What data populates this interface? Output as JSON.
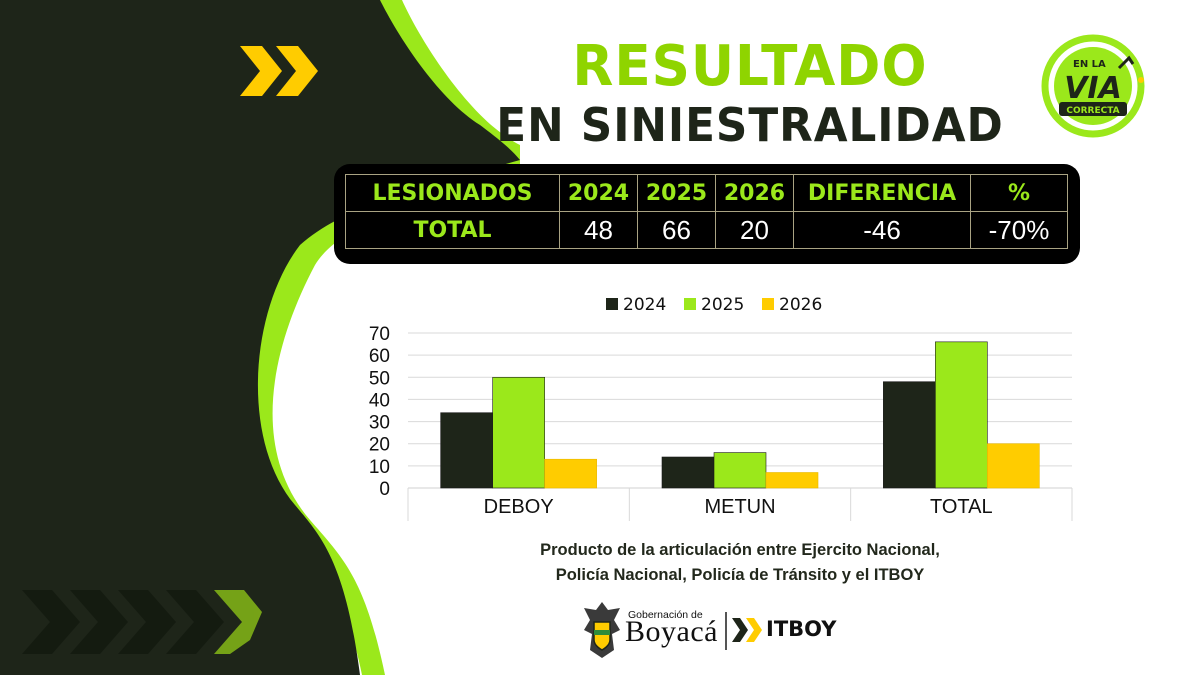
{
  "header": {
    "title_line_1": "RESULTADO",
    "title_line_2": "EN SINIESTRALIDAD"
  },
  "logo": {
    "top_text": "EN LA",
    "main_text": "VIA",
    "banner_text": "CORRECTA"
  },
  "table": {
    "headers": [
      "LESIONADOS",
      "2024",
      "2025",
      "2026",
      "DIFERENCIA",
      "%"
    ],
    "row": {
      "label": "TOTAL",
      "values": [
        "48",
        "66",
        "20",
        "-46",
        "-70%"
      ]
    }
  },
  "chart_data": {
    "type": "bar",
    "categories": [
      "DEBOY",
      "METUN",
      "TOTAL"
    ],
    "series": [
      {
        "name": "2024",
        "values": [
          34,
          14,
          48
        ]
      },
      {
        "name": "2025",
        "values": [
          50,
          16,
          66
        ]
      },
      {
        "name": "2026",
        "values": [
          13,
          7,
          20
        ]
      }
    ],
    "ylim": [
      0,
      70
    ],
    "yticks": [
      0,
      10,
      20,
      30,
      40,
      50,
      60,
      70
    ],
    "grid": true,
    "legend": "top",
    "colors": [
      "#1e2519",
      "#9be81b",
      "#ffcc00"
    ]
  },
  "caption": {
    "line_1": "Producto de la articulación entre Ejercito Nacional,",
    "line_2": "Policía Nacional, Policía de Tránsito y el ITBOY"
  },
  "footer": {
    "gov_small": "Gobernación de",
    "gov_big": "Boyacá",
    "agency": "ITBOY"
  },
  "theme": {
    "dark": "#1e2519",
    "lime": "#9be81b",
    "yellow": "#ffcc00"
  }
}
